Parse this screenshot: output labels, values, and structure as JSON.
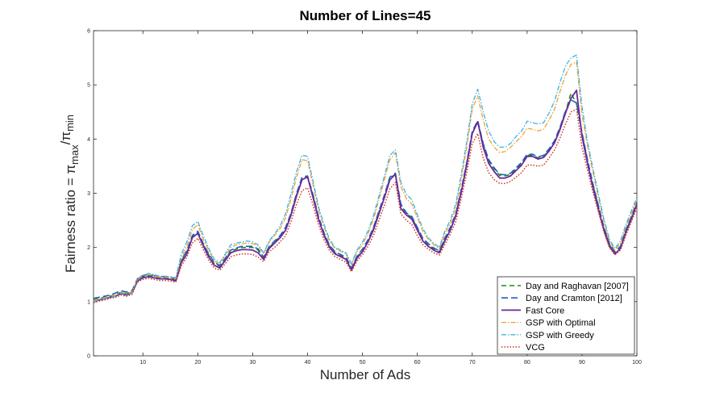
{
  "chart_data": {
    "type": "line",
    "title": "Number of Lines=45",
    "xlabel": "Number of Ads",
    "ylabel": {
      "main": "Fairness ratio = π",
      "sub1": "max",
      "sep": "/π",
      "sub2": "min"
    },
    "xlim": [
      1,
      100
    ],
    "ylim": [
      0,
      6
    ],
    "xticks": [
      10,
      20,
      30,
      40,
      50,
      60,
      70,
      80,
      90,
      100
    ],
    "yticks": [
      0,
      1,
      2,
      3,
      4,
      5,
      6
    ],
    "grid": false,
    "legend_position": "bottom-right",
    "x": [
      1,
      2,
      3,
      4,
      5,
      6,
      7,
      8,
      9,
      10,
      11,
      12,
      13,
      14,
      15,
      16,
      17,
      18,
      19,
      20,
      21,
      22,
      23,
      24,
      25,
      26,
      27,
      28,
      29,
      30,
      31,
      32,
      33,
      34,
      35,
      36,
      37,
      38,
      39,
      40,
      41,
      42,
      43,
      44,
      45,
      46,
      47,
      48,
      49,
      50,
      51,
      52,
      53,
      54,
      55,
      56,
      57,
      58,
      59,
      60,
      61,
      62,
      63,
      64,
      65,
      66,
      67,
      68,
      69,
      70,
      71,
      72,
      73,
      74,
      75,
      76,
      77,
      78,
      79,
      80,
      81,
      82,
      83,
      84,
      85,
      86,
      87,
      88,
      89,
      90,
      91,
      92,
      93,
      94,
      95,
      96,
      97,
      98,
      99,
      100
    ],
    "series": [
      {
        "name": "Day and Raghavan [2007]",
        "color": "#1b8a1b",
        "dash": "6,4",
        "width": 1.6,
        "values": [
          1.03,
          1.06,
          1.08,
          1.1,
          1.13,
          1.17,
          1.15,
          1.18,
          1.4,
          1.46,
          1.48,
          1.46,
          1.44,
          1.44,
          1.43,
          1.4,
          1.75,
          1.92,
          2.2,
          2.28,
          2.05,
          1.86,
          1.7,
          1.65,
          1.78,
          1.93,
          1.97,
          2.0,
          2.0,
          2.0,
          1.95,
          1.8,
          2.0,
          2.1,
          2.2,
          2.35,
          2.62,
          2.98,
          3.28,
          3.3,
          2.95,
          2.55,
          2.25,
          2.02,
          1.9,
          1.85,
          1.8,
          1.6,
          1.82,
          1.95,
          2.12,
          2.35,
          2.65,
          2.95,
          3.28,
          3.35,
          2.78,
          2.62,
          2.55,
          2.35,
          2.15,
          2.05,
          1.97,
          1.92,
          2.15,
          2.35,
          2.6,
          3.05,
          3.55,
          4.12,
          4.32,
          3.9,
          3.6,
          3.45,
          3.33,
          3.32,
          3.35,
          3.45,
          3.55,
          3.7,
          3.7,
          3.65,
          3.68,
          3.8,
          3.95,
          4.2,
          4.5,
          4.85,
          4.65,
          4.1,
          3.6,
          3.15,
          2.75,
          2.35,
          2.05,
          1.9,
          2.0,
          2.3,
          2.55,
          2.82
        ]
      },
      {
        "name": "Day and Cramton [2012]",
        "color": "#1f5fbf",
        "dash": "8,4",
        "width": 1.6,
        "values": [
          1.06,
          1.08,
          1.1,
          1.12,
          1.16,
          1.2,
          1.18,
          1.2,
          1.42,
          1.48,
          1.5,
          1.48,
          1.46,
          1.46,
          1.45,
          1.42,
          1.77,
          1.94,
          2.22,
          2.3,
          2.07,
          1.88,
          1.72,
          1.67,
          1.8,
          1.95,
          1.99,
          2.02,
          2.02,
          2.02,
          1.97,
          1.82,
          2.02,
          2.12,
          2.22,
          2.37,
          2.64,
          3.0,
          3.3,
          3.32,
          2.97,
          2.57,
          2.27,
          2.04,
          1.92,
          1.87,
          1.82,
          1.62,
          1.84,
          1.97,
          2.14,
          2.37,
          2.67,
          2.97,
          3.3,
          3.37,
          2.8,
          2.64,
          2.57,
          2.37,
          2.17,
          2.07,
          1.99,
          1.94,
          2.17,
          2.37,
          2.62,
          3.07,
          3.57,
          4.14,
          4.34,
          3.92,
          3.62,
          3.47,
          3.35,
          3.34,
          3.37,
          3.47,
          3.57,
          3.72,
          3.72,
          3.67,
          3.7,
          3.82,
          3.97,
          4.22,
          4.52,
          4.72,
          4.67,
          4.12,
          3.62,
          3.17,
          2.77,
          2.37,
          2.07,
          1.92,
          2.02,
          2.32,
          2.57,
          2.84
        ]
      },
      {
        "name": "Fast Core",
        "color": "#6a2a9a",
        "dash": "",
        "width": 1.8,
        "values": [
          1.0,
          1.03,
          1.05,
          1.08,
          1.1,
          1.15,
          1.12,
          1.16,
          1.38,
          1.44,
          1.46,
          1.44,
          1.42,
          1.42,
          1.41,
          1.38,
          1.72,
          1.88,
          2.18,
          2.26,
          2.03,
          1.82,
          1.67,
          1.62,
          1.76,
          1.9,
          1.94,
          1.96,
          1.96,
          1.95,
          1.9,
          1.78,
          1.98,
          2.08,
          2.18,
          2.32,
          2.6,
          2.95,
          3.25,
          3.3,
          2.92,
          2.52,
          2.22,
          2.0,
          1.88,
          1.83,
          1.78,
          1.58,
          1.8,
          1.92,
          2.1,
          2.32,
          2.62,
          2.92,
          3.25,
          3.35,
          2.72,
          2.6,
          2.52,
          2.32,
          2.12,
          2.02,
          1.95,
          1.9,
          2.12,
          2.32,
          2.58,
          3.02,
          3.52,
          4.1,
          4.32,
          3.85,
          3.55,
          3.4,
          3.28,
          3.28,
          3.32,
          3.42,
          3.52,
          3.68,
          3.68,
          3.63,
          3.66,
          3.78,
          3.93,
          4.18,
          4.48,
          4.75,
          4.9,
          4.05,
          3.55,
          3.1,
          2.7,
          2.32,
          2.02,
          1.88,
          1.98,
          2.28,
          2.52,
          2.8
        ]
      },
      {
        "name": "GSP with Optimal",
        "color": "#f0a030",
        "dash": "6,2,1.5,2",
        "width": 1.3,
        "values": [
          1.02,
          1.05,
          1.07,
          1.1,
          1.12,
          1.18,
          1.15,
          1.18,
          1.42,
          1.5,
          1.5,
          1.48,
          1.45,
          1.45,
          1.44,
          1.42,
          1.82,
          2.02,
          2.33,
          2.42,
          2.15,
          1.95,
          1.75,
          1.7,
          1.85,
          2.0,
          2.05,
          2.07,
          2.08,
          2.07,
          2.02,
          1.88,
          2.1,
          2.22,
          2.35,
          2.55,
          2.9,
          3.3,
          3.62,
          3.6,
          3.15,
          2.7,
          2.38,
          2.12,
          1.98,
          1.93,
          1.88,
          1.68,
          1.92,
          2.05,
          2.25,
          2.52,
          2.88,
          3.25,
          3.62,
          3.75,
          3.12,
          2.9,
          2.8,
          2.55,
          2.3,
          2.15,
          2.05,
          1.98,
          2.25,
          2.45,
          2.72,
          3.25,
          3.85,
          4.55,
          4.8,
          4.35,
          4.0,
          3.85,
          3.75,
          3.77,
          3.85,
          3.95,
          4.05,
          4.2,
          4.18,
          4.15,
          4.18,
          4.35,
          4.55,
          4.88,
          5.18,
          5.38,
          5.42,
          4.45,
          3.88,
          3.38,
          2.92,
          2.48,
          2.12,
          1.95,
          2.08,
          2.38,
          2.62,
          2.88
        ]
      },
      {
        "name": "GSP with Greedy",
        "color": "#3cb4e6",
        "dash": "6,2,1.5,2",
        "width": 1.3,
        "values": [
          1.0,
          1.03,
          1.05,
          1.08,
          1.1,
          1.16,
          1.13,
          1.16,
          1.4,
          1.48,
          1.52,
          1.5,
          1.47,
          1.47,
          1.46,
          1.44,
          1.88,
          2.1,
          2.4,
          2.48,
          2.22,
          1.98,
          1.78,
          1.72,
          1.88,
          2.05,
          2.08,
          2.1,
          2.12,
          2.1,
          2.05,
          1.9,
          2.12,
          2.25,
          2.4,
          2.62,
          3.0,
          3.4,
          3.7,
          3.68,
          3.22,
          2.75,
          2.42,
          2.15,
          2.0,
          1.95,
          1.9,
          1.7,
          1.95,
          2.1,
          2.3,
          2.58,
          2.95,
          3.32,
          3.7,
          3.8,
          3.2,
          2.98,
          2.88,
          2.6,
          2.35,
          2.18,
          2.08,
          2.0,
          2.3,
          2.5,
          2.8,
          3.35,
          3.95,
          4.65,
          4.92,
          4.5,
          4.15,
          3.95,
          3.85,
          3.85,
          3.92,
          4.05,
          4.15,
          4.33,
          4.3,
          4.28,
          4.3,
          4.48,
          4.7,
          5.05,
          5.35,
          5.5,
          5.55,
          4.6,
          3.95,
          3.45,
          2.98,
          2.52,
          2.15,
          1.98,
          2.12,
          2.42,
          2.68,
          2.92
        ]
      },
      {
        "name": "VCG",
        "color": "#d0321e",
        "dash": "1.5,2",
        "width": 1.5,
        "values": [
          0.98,
          1.01,
          1.03,
          1.06,
          1.08,
          1.12,
          1.1,
          1.13,
          1.36,
          1.41,
          1.43,
          1.41,
          1.39,
          1.39,
          1.38,
          1.36,
          1.66,
          1.82,
          2.08,
          2.17,
          1.96,
          1.76,
          1.62,
          1.58,
          1.7,
          1.83,
          1.86,
          1.88,
          1.88,
          1.87,
          1.82,
          1.74,
          1.92,
          2.0,
          2.1,
          2.22,
          2.48,
          2.8,
          3.05,
          3.1,
          2.78,
          2.42,
          2.14,
          1.94,
          1.83,
          1.78,
          1.73,
          1.55,
          1.75,
          1.87,
          2.02,
          2.22,
          2.5,
          2.78,
          3.08,
          3.2,
          2.62,
          2.5,
          2.42,
          2.22,
          2.05,
          1.97,
          1.9,
          1.86,
          2.05,
          2.25,
          2.48,
          2.9,
          3.38,
          3.92,
          4.1,
          3.65,
          3.38,
          3.25,
          3.18,
          3.18,
          3.22,
          3.3,
          3.38,
          3.52,
          3.52,
          3.5,
          3.52,
          3.65,
          3.8,
          4.02,
          4.28,
          4.5,
          4.55,
          3.85,
          3.42,
          3.02,
          2.65,
          2.28,
          2.0,
          1.86,
          1.95,
          2.22,
          2.48,
          2.72
        ]
      }
    ]
  }
}
